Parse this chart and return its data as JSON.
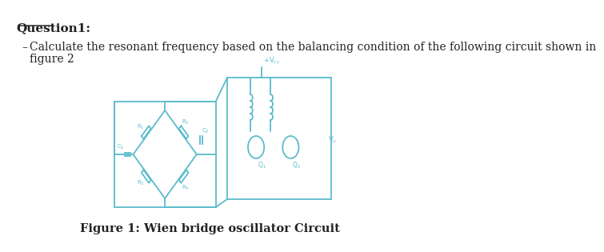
{
  "title": "Question1:",
  "bullet_text": "Calculate the resonant frequency based on the balancing condition of the following circuit shown in\nfigure 2",
  "caption": "Figure 1: Wien bridge oscillator Circuit",
  "bg_color": "#ffffff",
  "circuit_color": "#5bbccc",
  "text_color": "#222222",
  "title_fontsize": 11,
  "body_fontsize": 10,
  "caption_fontsize": 10.5
}
